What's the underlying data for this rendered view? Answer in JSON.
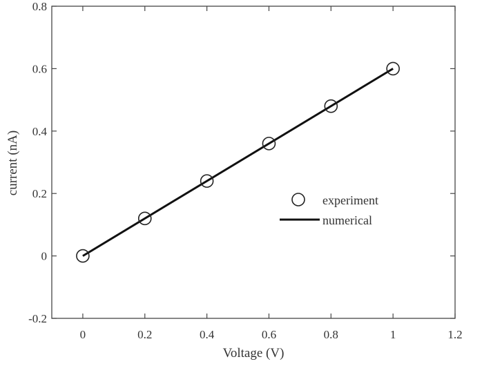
{
  "chart_data": {
    "type": "scatter",
    "title": "",
    "xlabel": "Voltage (V)",
    "ylabel": "current (nA)",
    "xlim": [
      -0.1,
      1.2
    ],
    "ylim": [
      -0.2,
      0.8
    ],
    "xticks": [
      0,
      0.2,
      0.4,
      0.6,
      0.8,
      1,
      1.2
    ],
    "xtick_labels": [
      "0",
      "0.2",
      "0.4",
      "0.6",
      "0.8",
      "1",
      "1.2"
    ],
    "yticks": [
      -0.2,
      0,
      0.2,
      0.4,
      0.6,
      0.8
    ],
    "ytick_labels": [
      "-0.2",
      "0",
      "0.2",
      "0.4",
      "0.6",
      "0.8"
    ],
    "grid": false,
    "legend_position": "center-right",
    "series": [
      {
        "name": "experiment",
        "style": "markers",
        "marker": "open-circle",
        "x": [
          0,
          0.2,
          0.4,
          0.6,
          0.8,
          1
        ],
        "y": [
          0,
          0.12,
          0.24,
          0.36,
          0.48,
          0.6
        ]
      },
      {
        "name": "numerical",
        "style": "line",
        "x": [
          0,
          1
        ],
        "y": [
          0,
          0.6
        ]
      }
    ],
    "colors": {
      "axis": "#444444",
      "line": "#111111",
      "marker": "#222222"
    }
  }
}
